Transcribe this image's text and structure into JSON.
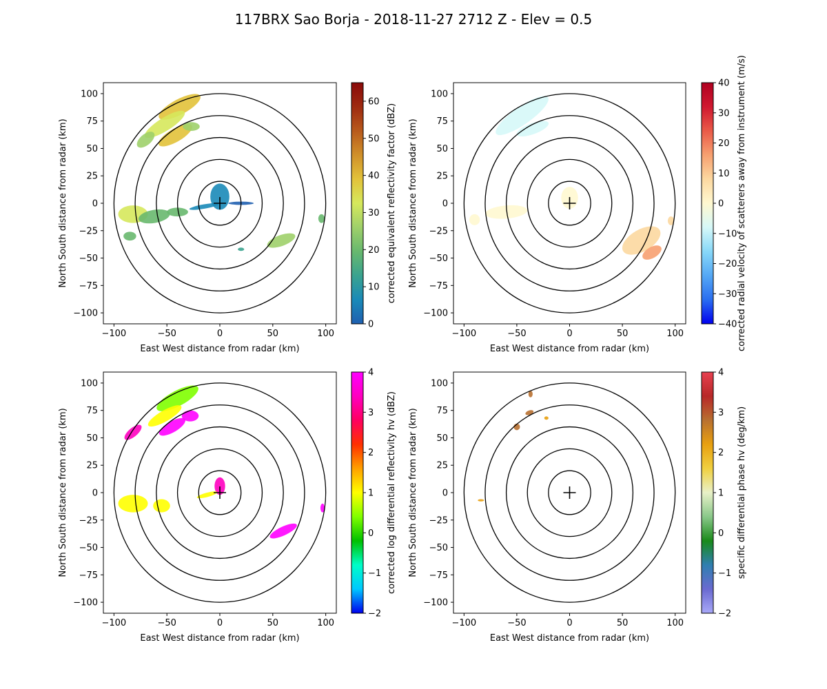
{
  "title": "117BRX Sao Borja - 2018-11-27 2712 Z -  Elev = 0.5",
  "chart_data": [
    {
      "type": "heatmap",
      "panel": "top-left",
      "xlabel": "East West distance from radar (km)",
      "ylabel": "North South distance from radar (km)",
      "xlim": [
        -110,
        110
      ],
      "ylim": [
        -110,
        110
      ],
      "ticks": [
        -100,
        -75,
        -50,
        -25,
        0,
        25,
        50,
        75,
        100
      ],
      "xticks": [
        -100,
        -50,
        0,
        50,
        100
      ],
      "xtick_labels": [
        "−100",
        "−50",
        "0",
        "50",
        "100"
      ],
      "ytick_labels": [
        "−100",
        "−75",
        "−50",
        "−25",
        "0",
        "25",
        "50",
        "75",
        "100"
      ],
      "range_rings_km": [
        20,
        40,
        60,
        80,
        100
      ],
      "colorbar": {
        "label": "corrected equivalent reflectivity factor (dBZ)",
        "range": [
          0,
          65
        ],
        "ticks": [
          0,
          10,
          20,
          30,
          40,
          50,
          60
        ],
        "tick_labels": [
          "0",
          "10",
          "20",
          "30",
          "40",
          "50",
          "60"
        ],
        "colors": [
          "#1f5fb0",
          "#1a8ab8",
          "#3aa38f",
          "#68b86e",
          "#9fd06a",
          "#d6e85c",
          "#e2c23a",
          "#d0902a",
          "#b85a1c",
          "#9e2a10",
          "#8a0a0a"
        ]
      },
      "echo_regions": [
        {
          "x": -38,
          "y": 88,
          "rx": 22,
          "ry": 7,
          "rot": -28,
          "value": 38
        },
        {
          "x": -52,
          "y": 72,
          "rx": 22,
          "ry": 6,
          "rot": -32,
          "value": 30
        },
        {
          "x": -70,
          "y": 58,
          "rx": 10,
          "ry": 5,
          "rot": -40,
          "value": 28
        },
        {
          "x": -42,
          "y": 62,
          "rx": 18,
          "ry": 6,
          "rot": -30,
          "value": 40
        },
        {
          "x": -27,
          "y": 70,
          "rx": 8,
          "ry": 4,
          "rot": 0,
          "value": 25
        },
        {
          "x": -82,
          "y": -10,
          "rx": 14,
          "ry": 8,
          "rot": 0,
          "value": 30
        },
        {
          "x": -62,
          "y": -12,
          "rx": 15,
          "ry": 6,
          "rot": -10,
          "value": 22
        },
        {
          "x": -40,
          "y": -8,
          "rx": 10,
          "ry": 4,
          "rot": 0,
          "value": 18
        },
        {
          "x": -85,
          "y": -30,
          "rx": 6,
          "ry": 4,
          "rot": 0,
          "value": 20
        },
        {
          "x": 58,
          "y": -34,
          "rx": 14,
          "ry": 5,
          "rot": -20,
          "value": 28
        },
        {
          "x": 96,
          "y": -14,
          "rx": 3,
          "ry": 4,
          "rot": 0,
          "value": 22
        },
        {
          "x": 20,
          "y": -42,
          "rx": 3,
          "ry": 1.5,
          "rot": 0,
          "value": 10
        },
        {
          "x": 0,
          "y": 6,
          "rx": 9,
          "ry": 12,
          "rot": 0,
          "value": 5
        },
        {
          "x": -15,
          "y": -3,
          "rx": 14,
          "ry": 2,
          "rot": -10,
          "value": 5
        },
        {
          "x": 20,
          "y": 0,
          "rx": 12,
          "ry": 1.5,
          "rot": 0,
          "value": 3
        }
      ]
    },
    {
      "type": "heatmap",
      "panel": "top-right",
      "xlabel": "East West distance from radar (km)",
      "ylabel": "North South distance from radar (km)",
      "xlim": [
        -110,
        110
      ],
      "ylim": [
        -110,
        110
      ],
      "ticks": [
        -100,
        -75,
        -50,
        -25,
        0,
        25,
        50,
        75,
        100
      ],
      "xticks": [
        -100,
        -50,
        0,
        50,
        100
      ],
      "xtick_labels": [
        "−100",
        "−50",
        "0",
        "50",
        "100"
      ],
      "ytick_labels": [
        "−100",
        "−75",
        "−50",
        "−25",
        "0",
        "25",
        "50",
        "75",
        "100"
      ],
      "range_rings_km": [
        20,
        40,
        60,
        80,
        100
      ],
      "colorbar": {
        "label": "corrected radial velocity of scatterers away from instrument (m/s)",
        "range": [
          -40,
          40
        ],
        "ticks": [
          -40,
          -30,
          -20,
          -10,
          0,
          10,
          20,
          30,
          40
        ],
        "tick_labels": [
          "−40",
          "−30",
          "−20",
          "−10",
          "0",
          "10",
          "20",
          "30",
          "40"
        ],
        "colors": [
          "#0000ee",
          "#2a6ef0",
          "#55a8f5",
          "#88d8f8",
          "#d6f8f8",
          "#fff8d0",
          "#fcd8a0",
          "#f7a070",
          "#ea5a48",
          "#d01830",
          "#b00020"
        ]
      },
      "echo_regions": [
        {
          "x": -45,
          "y": 80,
          "rx": 30,
          "ry": 8,
          "rot": -35,
          "value": -12
        },
        {
          "x": -35,
          "y": 68,
          "rx": 16,
          "ry": 5,
          "rot": -20,
          "value": -12
        },
        {
          "x": -60,
          "y": -8,
          "rx": 20,
          "ry": 6,
          "rot": -5,
          "value": 3
        },
        {
          "x": -90,
          "y": -15,
          "rx": 5,
          "ry": 5,
          "rot": 0,
          "value": 3
        },
        {
          "x": 68,
          "y": -34,
          "rx": 20,
          "ry": 10,
          "rot": -30,
          "value": 6
        },
        {
          "x": 78,
          "y": -45,
          "rx": 10,
          "ry": 5,
          "rot": -30,
          "value": 14
        },
        {
          "x": 0,
          "y": 5,
          "rx": 8,
          "ry": 10,
          "rot": 0,
          "value": 2
        },
        {
          "x": 96,
          "y": -16,
          "rx": 3,
          "ry": 4,
          "rot": 0,
          "value": 4
        }
      ]
    },
    {
      "type": "heatmap",
      "panel": "bottom-left",
      "xlabel": "East West distance from radar (km)",
      "ylabel": "North South distance from radar (km)",
      "xlim": [
        -110,
        110
      ],
      "ylim": [
        -110,
        110
      ],
      "ticks": [
        -100,
        -75,
        -50,
        -25,
        0,
        25,
        50,
        75,
        100
      ],
      "xticks": [
        -100,
        -50,
        0,
        50,
        100
      ],
      "xtick_labels": [
        "−100",
        "−50",
        "0",
        "50",
        "100"
      ],
      "ytick_labels": [
        "−100",
        "−75",
        "−50",
        "−25",
        "0",
        "25",
        "50",
        "75",
        "100"
      ],
      "range_rings_km": [
        20,
        40,
        60,
        80,
        100
      ],
      "colorbar": {
        "label": "corrected log differential reflectivity hv (dBZ)",
        "range": [
          -2,
          4
        ],
        "ticks": [
          -2,
          -1,
          0,
          1,
          2,
          3,
          4
        ],
        "tick_labels": [
          "−2",
          "−1",
          "0",
          "1",
          "2",
          "3",
          "4"
        ],
        "colors": [
          "#0000ee",
          "#00c8ff",
          "#00ffc8",
          "#00c000",
          "#80ff00",
          "#ffff00",
          "#ffa000",
          "#ff3000",
          "#ff0060",
          "#ff00c0",
          "#ff00ff"
        ]
      },
      "echo_regions": [
        {
          "x": -40,
          "y": 86,
          "rx": 22,
          "ry": 7,
          "rot": -28,
          "value": 0.6
        },
        {
          "x": -28,
          "y": 70,
          "rx": 8,
          "ry": 5,
          "rot": 0,
          "value": 3.9
        },
        {
          "x": -52,
          "y": 70,
          "rx": 18,
          "ry": 5,
          "rot": -30,
          "value": 1.2
        },
        {
          "x": -45,
          "y": 60,
          "rx": 14,
          "ry": 5,
          "rot": -30,
          "value": 3.8
        },
        {
          "x": -82,
          "y": 55,
          "rx": 10,
          "ry": 4,
          "rot": -40,
          "value": 3.6
        },
        {
          "x": -82,
          "y": -10,
          "rx": 14,
          "ry": 8,
          "rot": 0,
          "value": 1.0
        },
        {
          "x": -55,
          "y": -12,
          "rx": 8,
          "ry": 6,
          "rot": 0,
          "value": 0.8
        },
        {
          "x": 60,
          "y": -35,
          "rx": 14,
          "ry": 4,
          "rot": -25,
          "value": 3.8
        },
        {
          "x": 97,
          "y": -14,
          "rx": 2,
          "ry": 4,
          "rot": 0,
          "value": 3.9
        },
        {
          "x": 0,
          "y": 6,
          "rx": 5,
          "ry": 8,
          "rot": 0,
          "value": 3.5
        },
        {
          "x": -12,
          "y": -2,
          "rx": 10,
          "ry": 2,
          "rot": -15,
          "value": 0.9
        }
      ]
    },
    {
      "type": "heatmap",
      "panel": "bottom-right",
      "xlabel": "East West distance from radar (km)",
      "ylabel": "North South distance from radar (km)",
      "xlim": [
        -110,
        110
      ],
      "ylim": [
        -110,
        110
      ],
      "ticks": [
        -100,
        -75,
        -50,
        -25,
        0,
        25,
        50,
        75,
        100
      ],
      "xticks": [
        -100,
        -50,
        0,
        50,
        100
      ],
      "xtick_labels": [
        "−100",
        "−50",
        "0",
        "50",
        "100"
      ],
      "ytick_labels": [
        "−100",
        "−75",
        "−50",
        "−25",
        "0",
        "25",
        "50",
        "75",
        "100"
      ],
      "range_rings_km": [
        20,
        40,
        60,
        80,
        100
      ],
      "colorbar": {
        "label": "specific differential phase hv (deg/km)",
        "range": [
          -2,
          4
        ],
        "ticks": [
          -2,
          -1,
          0,
          1,
          2,
          3,
          4
        ],
        "tick_labels": [
          "−2",
          "−1",
          "0",
          "1",
          "2",
          "3",
          "4"
        ],
        "colors": [
          "#a8a8f8",
          "#6a6ad0",
          "#2f7fb0",
          "#1a8a1a",
          "#8ac88a",
          "#e8f0c8",
          "#f0d040",
          "#e8a010",
          "#b87030",
          "#b82828",
          "#e84050"
        ]
      },
      "echo_regions": [
        {
          "x": -37,
          "y": 90,
          "rx": 2,
          "ry": 3,
          "rot": 0,
          "value": 2.8
        },
        {
          "x": -38,
          "y": 73,
          "rx": 4,
          "ry": 2,
          "rot": -20,
          "value": 2.6
        },
        {
          "x": -50,
          "y": 60,
          "rx": 3,
          "ry": 3,
          "rot": 0,
          "value": 3.0
        },
        {
          "x": -22,
          "y": 68,
          "rx": 2,
          "ry": 1.5,
          "rot": 0,
          "value": 2.2
        },
        {
          "x": -84,
          "y": -7,
          "rx": 3,
          "ry": 1,
          "rot": 0,
          "value": 2.4
        }
      ]
    }
  ]
}
